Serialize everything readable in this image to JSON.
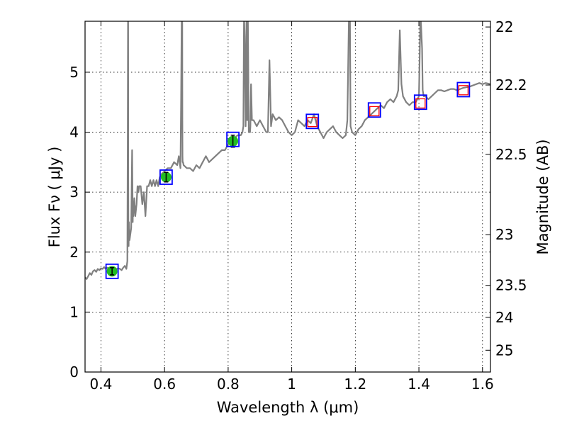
{
  "chart_data": {
    "type": "line",
    "xlabel": "Wavelength  λ (μm)",
    "ylabel": "Flux  Fν  ( μJy )",
    "y2label": "Magnitude (AB)",
    "xlim": [
      0.35,
      1.625
    ],
    "ylim": [
      0,
      5.85
    ],
    "xticks": [
      0.4,
      0.6,
      0.8,
      1.0,
      1.2,
      1.4,
      1.6
    ],
    "xtick_labels": [
      "0.4",
      "0.6",
      "0.8",
      "1",
      "1.2",
      "1.4",
      "1.6"
    ],
    "yticks": [
      0,
      1,
      2,
      3,
      4,
      5
    ],
    "ytick_labels": [
      "0",
      "1",
      "2",
      "3",
      "4",
      "5"
    ],
    "y2ticks": [
      22,
      22.2,
      22.5,
      23,
      23.5,
      24,
      25
    ],
    "y2tick_labels": [
      "22",
      "22.2",
      "22.5",
      "23",
      "23.5",
      "24",
      "25"
    ],
    "grid": true,
    "colors": {
      "spectrum": "#808080",
      "model_box": "#0000ff",
      "observed_marker": "#22bb22",
      "nir_box": "#ff0000",
      "errorbar": "#000000"
    },
    "spectrum": {
      "name": "",
      "x": [
        0.35,
        0.355,
        0.36,
        0.365,
        0.37,
        0.375,
        0.38,
        0.385,
        0.39,
        0.395,
        0.4,
        0.405,
        0.41,
        0.415,
        0.42,
        0.425,
        0.43,
        0.435,
        0.44,
        0.445,
        0.45,
        0.455,
        0.46,
        0.465,
        0.47,
        0.475,
        0.48,
        0.483,
        0.484,
        0.485,
        0.4855,
        0.486,
        0.4865,
        0.487,
        0.488,
        0.49,
        0.495,
        0.498,
        0.499,
        0.5,
        0.501,
        0.502,
        0.505,
        0.508,
        0.51,
        0.512,
        0.515,
        0.518,
        0.52,
        0.525,
        0.53,
        0.535,
        0.54,
        0.545,
        0.55,
        0.555,
        0.56,
        0.565,
        0.57,
        0.575,
        0.58,
        0.585,
        0.59,
        0.6,
        0.61,
        0.62,
        0.63,
        0.64,
        0.645,
        0.65,
        0.652,
        0.654,
        0.655,
        0.6555,
        0.656,
        0.6565,
        0.657,
        0.658,
        0.66,
        0.67,
        0.68,
        0.69,
        0.7,
        0.71,
        0.72,
        0.73,
        0.74,
        0.75,
        0.76,
        0.77,
        0.78,
        0.79,
        0.8,
        0.81,
        0.82,
        0.83,
        0.84,
        0.845,
        0.848,
        0.85,
        0.852,
        0.855,
        0.858,
        0.86,
        0.862,
        0.865,
        0.867,
        0.869,
        0.87,
        0.872,
        0.875,
        0.88,
        0.885,
        0.89,
        0.9,
        0.91,
        0.92,
        0.925,
        0.93,
        0.935,
        0.94,
        0.95,
        0.96,
        0.97,
        0.98,
        0.99,
        1.0,
        1.01,
        1.02,
        1.03,
        1.04,
        1.05,
        1.06,
        1.07,
        1.08,
        1.09,
        1.1,
        1.11,
        1.12,
        1.13,
        1.14,
        1.15,
        1.16,
        1.17,
        1.175,
        1.18,
        1.183,
        1.185,
        1.19,
        1.2,
        1.21,
        1.22,
        1.23,
        1.24,
        1.25,
        1.26,
        1.27,
        1.28,
        1.29,
        1.3,
        1.31,
        1.32,
        1.33,
        1.335,
        1.34,
        1.345,
        1.35,
        1.36,
        1.37,
        1.38,
        1.39,
        1.4,
        1.405,
        1.41,
        1.412,
        1.415,
        1.42,
        1.43,
        1.44,
        1.45,
        1.46,
        1.47,
        1.48,
        1.49,
        1.5,
        1.51,
        1.52,
        1.53,
        1.54,
        1.55,
        1.56,
        1.57,
        1.58,
        1.59,
        1.6,
        1.61,
        1.625
      ],
      "y": [
        1.58,
        1.55,
        1.6,
        1.65,
        1.62,
        1.68,
        1.7,
        1.67,
        1.72,
        1.7,
        1.73,
        1.72,
        1.75,
        1.72,
        1.74,
        1.73,
        1.72,
        1.7,
        1.7,
        1.72,
        1.72,
        1.73,
        1.72,
        1.7,
        1.74,
        1.77,
        1.72,
        1.85,
        3.5,
        6.0,
        6.0,
        3.2,
        2.3,
        2.1,
        2.5,
        2.2,
        2.4,
        3.7,
        3.2,
        2.5,
        2.8,
        2.6,
        2.9,
        2.6,
        2.7,
        2.8,
        3.1,
        3.0,
        3.1,
        3.1,
        2.8,
        3.0,
        2.6,
        3.1,
        3.1,
        3.2,
        3.1,
        3.2,
        3.1,
        3.2,
        3.1,
        3.25,
        3.3,
        3.35,
        3.4,
        3.4,
        3.5,
        3.45,
        3.6,
        3.4,
        4.5,
        6.0,
        6.0,
        6.0,
        4.2,
        3.6,
        3.5,
        3.5,
        3.45,
        3.4,
        3.4,
        3.35,
        3.45,
        3.4,
        3.5,
        3.6,
        3.5,
        3.55,
        3.6,
        3.65,
        3.7,
        3.7,
        3.8,
        3.85,
        3.9,
        3.95,
        3.95,
        4.0,
        4.1,
        6.0,
        5.6,
        4.1,
        6.0,
        4.2,
        6.0,
        4.0,
        4.0,
        4.0,
        4.1,
        4.8,
        4.2,
        4.2,
        4.15,
        4.1,
        4.2,
        4.1,
        4.0,
        4.0,
        5.2,
        4.1,
        4.3,
        4.2,
        4.25,
        4.2,
        4.1,
        4.0,
        3.95,
        4.0,
        4.2,
        4.15,
        4.1,
        4.2,
        4.15,
        4.3,
        4.1,
        4.0,
        3.9,
        4.0,
        4.05,
        4.1,
        4.0,
        3.95,
        3.9,
        3.95,
        4.2,
        6.0,
        6.0,
        4.1,
        4.0,
        3.95,
        4.05,
        4.1,
        4.2,
        4.25,
        4.3,
        4.35,
        4.4,
        4.45,
        4.4,
        4.5,
        4.55,
        4.5,
        4.6,
        4.7,
        5.7,
        4.8,
        4.6,
        4.5,
        4.45,
        4.5,
        4.5,
        4.6,
        6.0,
        5.4,
        4.7,
        4.6,
        4.6,
        4.55,
        4.6,
        4.65,
        4.7,
        4.7,
        4.68,
        4.7,
        4.72,
        4.72,
        4.7,
        4.72,
        4.74,
        4.75,
        4.76,
        4.78,
        4.8,
        4.82,
        4.8,
        4.82,
        4.8
      ]
    },
    "observed": {
      "x": [
        0.435,
        0.605,
        0.815
      ],
      "y": [
        1.68,
        3.25,
        3.85
      ],
      "yerr": [
        0.06,
        0.08,
        0.1
      ]
    },
    "model_boxes": {
      "x": [
        0.435,
        0.605,
        0.815,
        1.065,
        1.26,
        1.405,
        1.54
      ],
      "y": [
        1.68,
        3.25,
        3.88,
        4.18,
        4.37,
        4.5,
        4.71
      ]
    },
    "nir_points": {
      "x": [
        1.065,
        1.26,
        1.405,
        1.54
      ],
      "y": [
        4.17,
        4.35,
        4.48,
        4.7
      ]
    }
  }
}
